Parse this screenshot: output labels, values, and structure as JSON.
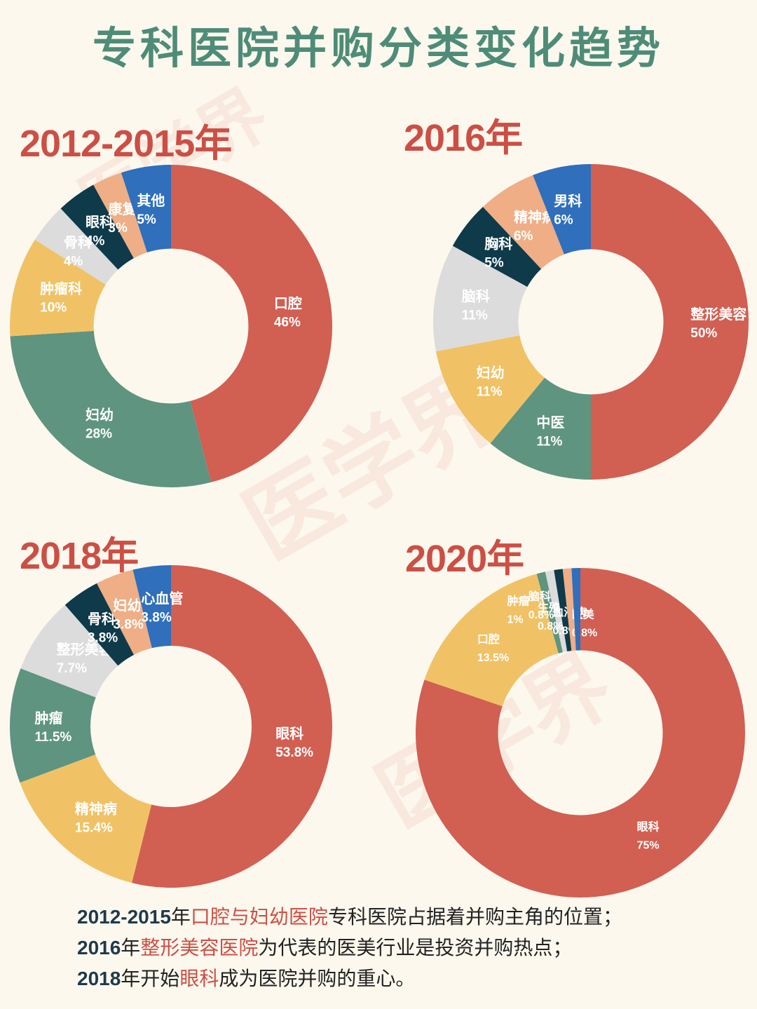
{
  "title": "专科医院并购分类变化趋势",
  "watermark": "医学界",
  "colors": {
    "red": "#d15f52",
    "green": "#5e9480",
    "yellow": "#f0c265",
    "gray": "#dcdcdc",
    "navy": "#0e3a4a",
    "peach": "#efae85",
    "blue": "#2f6fbb",
    "title": "#4e8c78",
    "year": "#cc4f45"
  },
  "chart_data": [
    {
      "type": "pie",
      "donut": true,
      "title": "2012-2015年",
      "slices": [
        {
          "label": "口腔",
          "value": 46,
          "value_label": "46%",
          "color": "red"
        },
        {
          "label": "妇幼",
          "value": 28,
          "value_label": "28%",
          "color": "green"
        },
        {
          "label": "肿瘤科",
          "value": 10,
          "value_label": "10%",
          "color": "yellow"
        },
        {
          "label": "骨科",
          "value": 4,
          "value_label": "4%",
          "color": "gray"
        },
        {
          "label": "眼科",
          "value": 4,
          "value_label": "4%",
          "color": "navy"
        },
        {
          "label": "康复",
          "value": 3,
          "value_label": "3%",
          "color": "peach"
        },
        {
          "label": "其他",
          "value": 5,
          "value_label": "5%",
          "color": "blue"
        }
      ]
    },
    {
      "type": "pie",
      "donut": true,
      "title": "2016年",
      "slices": [
        {
          "label": "整形美容",
          "value": 50,
          "value_label": "50%",
          "color": "red"
        },
        {
          "label": "中医",
          "value": 11,
          "value_label": "11%",
          "color": "green"
        },
        {
          "label": "妇幼",
          "value": 11,
          "value_label": "11%",
          "color": "yellow"
        },
        {
          "label": "脑科",
          "value": 11,
          "value_label": "11%",
          "color": "gray"
        },
        {
          "label": "胸科",
          "value": 5,
          "value_label": "5%",
          "color": "navy"
        },
        {
          "label": "精神病",
          "value": 6,
          "value_label": "6%",
          "color": "peach"
        },
        {
          "label": "男科",
          "value": 6,
          "value_label": "6%",
          "color": "blue"
        }
      ]
    },
    {
      "type": "pie",
      "donut": true,
      "title": "2018年",
      "slices": [
        {
          "label": "眼科",
          "value": 53.8,
          "value_label": "53.8%",
          "color": "red"
        },
        {
          "label": "精神病",
          "value": 15.4,
          "value_label": "15.4%",
          "color": "yellow"
        },
        {
          "label": "肿瘤",
          "value": 11.5,
          "value_label": "11.5%",
          "color": "green"
        },
        {
          "label": "整形美容",
          "value": 7.7,
          "value_label": "7.7%",
          "color": "gray"
        },
        {
          "label": "骨科",
          "value": 3.8,
          "value_label": "3.8%",
          "color": "navy"
        },
        {
          "label": "妇幼",
          "value": 3.8,
          "value_label": "3.8%",
          "color": "peach"
        },
        {
          "label": "心血管",
          "value": 3.8,
          "value_label": "3.8%",
          "color": "blue"
        }
      ]
    },
    {
      "type": "pie",
      "donut": true,
      "title": "2020年",
      "slices": [
        {
          "label": "眼科",
          "value": 75,
          "value_label": "75%",
          "color": "red"
        },
        {
          "label": "口腔",
          "value": 13.5,
          "value_label": "13.5%",
          "color": "yellow"
        },
        {
          "label": "肿瘤",
          "value": 1,
          "value_label": "1%",
          "color": "yellow"
        },
        {
          "label": "脑科",
          "value": 0.8,
          "value_label": "0.8%",
          "color": "green"
        },
        {
          "label": "生殖",
          "value": 0.8,
          "value_label": "0.8%",
          "color": "gray"
        },
        {
          "label": "血液病",
          "value": 0.8,
          "value_label": "0.8%",
          "color": "navy"
        },
        {
          "label": "医美",
          "value": 0.8,
          "value_label": "0.8%",
          "color": "peach"
        },
        {
          "label": "",
          "value": 0.8,
          "value_label": "",
          "color": "blue"
        }
      ]
    }
  ],
  "summary": [
    {
      "year": "2012-2015",
      "pre": "年",
      "highlight": "口腔与妇幼医院",
      "post": "专科医院占据着并购主角的位置；"
    },
    {
      "year": "2016",
      "pre": "年",
      "highlight": "整形美容医院",
      "post": "为代表的医美行业是投资并购热点；"
    },
    {
      "year": "2018",
      "pre": "年开始",
      "highlight": "眼科",
      "post": "成为医院并购的重心。"
    }
  ]
}
